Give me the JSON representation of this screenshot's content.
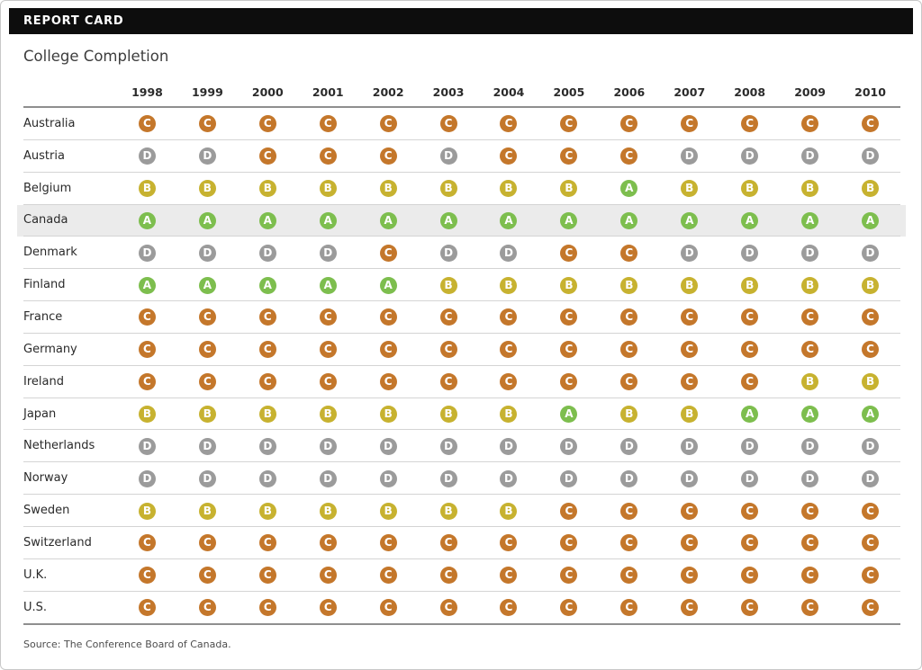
{
  "header": {
    "bar_label": "REPORT CARD"
  },
  "title": "College Completion",
  "source": "Source: The Conference Board of Canada.",
  "legend_colors": {
    "A": "#7dbe4e",
    "B": "#c7b230",
    "C": "#c4772b",
    "D": "#9b9b9b"
  },
  "highlight_row": "Canada",
  "chart_data": {
    "type": "table",
    "title": "College Completion",
    "columns": [
      "1998",
      "1999",
      "2000",
      "2001",
      "2002",
      "2003",
      "2004",
      "2005",
      "2006",
      "2007",
      "2008",
      "2009",
      "2010"
    ],
    "rows": [
      {
        "country": "Australia",
        "grades": [
          "C",
          "C",
          "C",
          "C",
          "C",
          "C",
          "C",
          "C",
          "C",
          "C",
          "C",
          "C",
          "C"
        ]
      },
      {
        "country": "Austria",
        "grades": [
          "D",
          "D",
          "C",
          "C",
          "C",
          "D",
          "C",
          "C",
          "C",
          "D",
          "D",
          "D",
          "D"
        ]
      },
      {
        "country": "Belgium",
        "grades": [
          "B",
          "B",
          "B",
          "B",
          "B",
          "B",
          "B",
          "B",
          "A",
          "B",
          "B",
          "B",
          "B"
        ]
      },
      {
        "country": "Canada",
        "grades": [
          "A",
          "A",
          "A",
          "A",
          "A",
          "A",
          "A",
          "A",
          "A",
          "A",
          "A",
          "A",
          "A"
        ]
      },
      {
        "country": "Denmark",
        "grades": [
          "D",
          "D",
          "D",
          "D",
          "C",
          "D",
          "D",
          "C",
          "C",
          "D",
          "D",
          "D",
          "D"
        ]
      },
      {
        "country": "Finland",
        "grades": [
          "A",
          "A",
          "A",
          "A",
          "A",
          "B",
          "B",
          "B",
          "B",
          "B",
          "B",
          "B",
          "B"
        ]
      },
      {
        "country": "France",
        "grades": [
          "C",
          "C",
          "C",
          "C",
          "C",
          "C",
          "C",
          "C",
          "C",
          "C",
          "C",
          "C",
          "C"
        ]
      },
      {
        "country": "Germany",
        "grades": [
          "C",
          "C",
          "C",
          "C",
          "C",
          "C",
          "C",
          "C",
          "C",
          "C",
          "C",
          "C",
          "C"
        ]
      },
      {
        "country": "Ireland",
        "grades": [
          "C",
          "C",
          "C",
          "C",
          "C",
          "C",
          "C",
          "C",
          "C",
          "C",
          "C",
          "B",
          "B"
        ]
      },
      {
        "country": "Japan",
        "grades": [
          "B",
          "B",
          "B",
          "B",
          "B",
          "B",
          "B",
          "A",
          "B",
          "B",
          "A",
          "A",
          "A"
        ]
      },
      {
        "country": "Netherlands",
        "grades": [
          "D",
          "D",
          "D",
          "D",
          "D",
          "D",
          "D",
          "D",
          "D",
          "D",
          "D",
          "D",
          "D"
        ]
      },
      {
        "country": "Norway",
        "grades": [
          "D",
          "D",
          "D",
          "D",
          "D",
          "D",
          "D",
          "D",
          "D",
          "D",
          "D",
          "D",
          "D"
        ]
      },
      {
        "country": "Sweden",
        "grades": [
          "B",
          "B",
          "B",
          "B",
          "B",
          "B",
          "B",
          "C",
          "C",
          "C",
          "C",
          "C",
          "C"
        ]
      },
      {
        "country": "Switzerland",
        "grades": [
          "C",
          "C",
          "C",
          "C",
          "C",
          "C",
          "C",
          "C",
          "C",
          "C",
          "C",
          "C",
          "C"
        ]
      },
      {
        "country": "U.K.",
        "grades": [
          "C",
          "C",
          "C",
          "C",
          "C",
          "C",
          "C",
          "C",
          "C",
          "C",
          "C",
          "C",
          "C"
        ]
      },
      {
        "country": "U.S.",
        "grades": [
          "C",
          "C",
          "C",
          "C",
          "C",
          "C",
          "C",
          "C",
          "C",
          "C",
          "C",
          "C",
          "C"
        ]
      }
    ]
  }
}
